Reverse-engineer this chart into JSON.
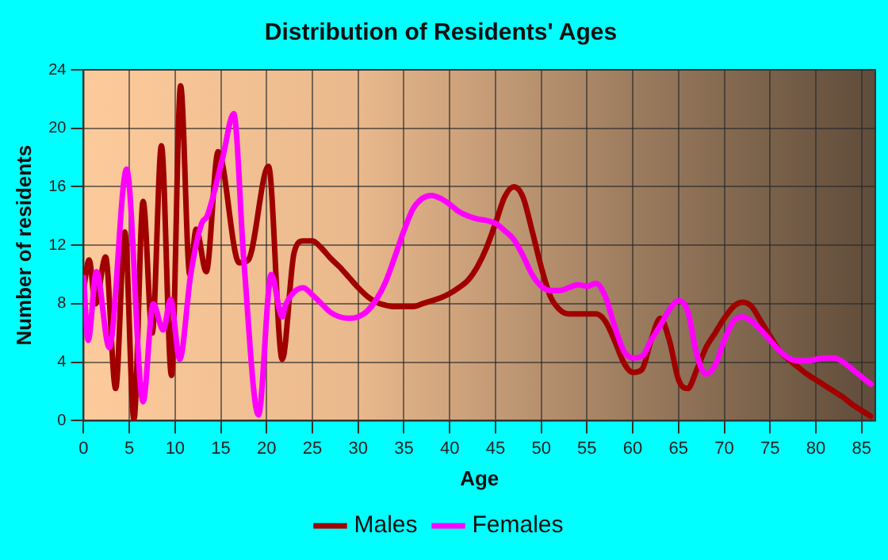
{
  "chart_data": {
    "type": "line",
    "title": "Distribution of Residents' Ages",
    "xlabel": "Age",
    "ylabel": "Number of residents",
    "xlim": [
      0,
      86.5
    ],
    "xticks": [
      0,
      5,
      10,
      15,
      20,
      25,
      30,
      35,
      40,
      45,
      50,
      55,
      60,
      65,
      70,
      75,
      80,
      85
    ],
    "ylim": [
      0,
      24
    ],
    "yticks": [
      0,
      4,
      8,
      12,
      16,
      20,
      24
    ],
    "grid": true,
    "legend": "bottom",
    "marker": "none",
    "line_style": "solid",
    "series": [
      {
        "name": "Males",
        "color": "#a00000",
        "x": [
          0,
          0.6,
          1.3,
          2.4,
          3.5,
          4.5,
          5.5,
          6.5,
          7.5,
          8.5,
          9.6,
          10.6,
          11.6,
          12.3,
          13.4,
          14.7,
          17,
          18,
          20.2,
          21.7,
          23,
          24,
          25,
          26,
          27,
          28,
          29,
          30,
          31,
          32,
          33,
          34,
          35,
          36,
          37,
          38,
          39,
          40,
          41,
          42,
          43,
          44,
          45,
          46,
          47,
          48,
          49,
          50,
          51,
          52,
          53,
          54,
          55,
          56,
          57,
          58,
          59,
          60,
          61,
          62,
          63,
          64,
          65,
          66,
          67,
          68,
          69,
          70,
          71,
          72,
          73,
          74,
          75,
          76,
          77,
          78,
          79,
          80,
          81,
          82,
          83,
          84,
          85,
          86
        ],
        "values": [
          9,
          11,
          8,
          11.2,
          2.2,
          12.9,
          0.1,
          15,
          6,
          18.8,
          3.1,
          22.9,
          10,
          13.1,
          10.2,
          18.4,
          10.8,
          11,
          17.4,
          4.2,
          11.5,
          12.3,
          12.3,
          11.8,
          11.1,
          10.5,
          9.8,
          9.1,
          8.5,
          8.1,
          7.9,
          7.8,
          7.8,
          7.8,
          8,
          8.2,
          8.4,
          8.7,
          9.1,
          9.6,
          10.5,
          11.8,
          13.5,
          15.3,
          16,
          15.3,
          13,
          10.5,
          8.5,
          7.6,
          7.3,
          7.3,
          7.3,
          7.3,
          6.8,
          5.5,
          4,
          3.3,
          3.5,
          5.5,
          7,
          5.5,
          2.8,
          2.2,
          3.5,
          5,
          6,
          7,
          7.8,
          8.1,
          7.8,
          6.8,
          5.8,
          4.8,
          4.2,
          3.7,
          3.2,
          2.8,
          2.4,
          2,
          1.6,
          1.1,
          0.7,
          0.3
        ]
      },
      {
        "name": "Females",
        "color": "#ff00ff",
        "x": [
          0,
          0.5,
          1.4,
          2.8,
          4.7,
          6.5,
          7.6,
          8.7,
          9.5,
          10.5,
          11.7,
          12.9,
          13.5,
          15.2,
          16.4,
          17.5,
          19.1,
          20.5,
          21.7,
          22,
          23,
          24,
          25,
          26,
          27,
          28,
          29,
          30,
          31,
          32,
          33,
          34,
          35,
          36,
          37,
          38,
          39,
          40,
          41,
          42,
          43,
          44,
          45,
          46,
          47,
          48,
          49,
          50,
          51,
          52,
          53,
          54,
          55,
          56,
          57,
          58,
          59,
          60,
          61,
          62,
          63,
          64,
          65,
          66,
          67,
          68,
          69,
          70,
          71,
          72,
          73,
          74,
          75,
          76,
          77,
          78,
          79,
          80,
          81,
          82,
          83,
          84,
          85,
          86
        ],
        "values": [
          9.8,
          5.5,
          10.2,
          5,
          17.2,
          1.3,
          8,
          6.2,
          8.3,
          4.2,
          10,
          13.5,
          14,
          18,
          21,
          11,
          0.4,
          10,
          7.1,
          7.8,
          8.8,
          9.1,
          8.6,
          8,
          7.4,
          7.1,
          7,
          7.1,
          7.5,
          8.3,
          9.5,
          11.2,
          13,
          14.5,
          15.2,
          15.4,
          15.2,
          14.8,
          14.3,
          14,
          13.8,
          13.7,
          13.5,
          13,
          12.4,
          11.3,
          10,
          9.2,
          8.9,
          8.9,
          9.1,
          9.3,
          9.2,
          9.4,
          8.5,
          6.5,
          4.8,
          4.3,
          4.4,
          5.5,
          6.5,
          7.6,
          8.2,
          7.5,
          4.5,
          3.2,
          3.8,
          5.5,
          6.8,
          7.1,
          6.8,
          6.2,
          5.5,
          4.8,
          4.3,
          4.1,
          4.1,
          4.2,
          4.3,
          4.3,
          4,
          3.5,
          3,
          2.5
        ]
      }
    ]
  }
}
